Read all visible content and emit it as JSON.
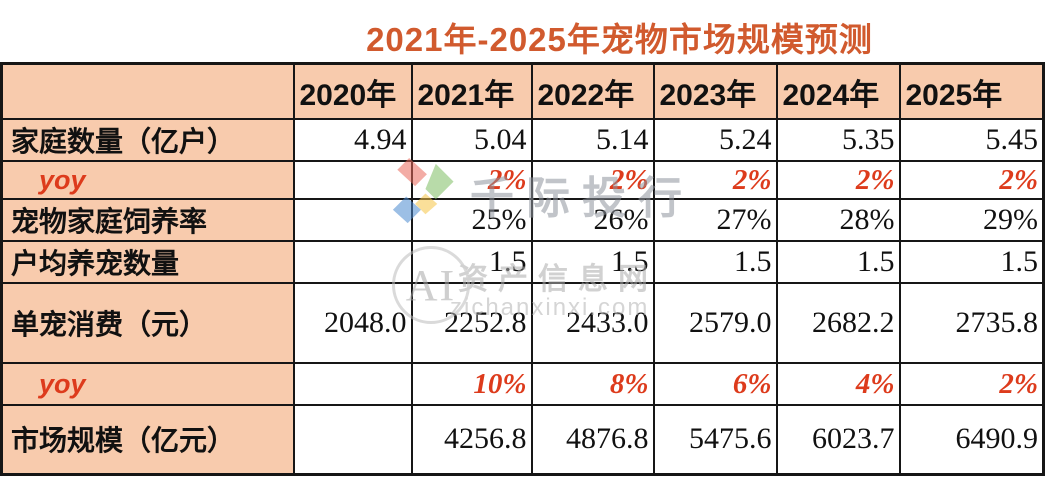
{
  "title": "2021年-2025年宠物市场规模预测",
  "colors": {
    "title_orange": "#D15A2E",
    "accent_red": "#DD3B1C",
    "header_peach": "#F8CBAD",
    "grid_border": "#161616"
  },
  "watermarks": {
    "brand1": {
      "logo": "diamond-pinwheel-logo",
      "text": "千际投行"
    },
    "brand2": {
      "logo": "ai-circle-logo",
      "text": "资产信息网",
      "url": "zichanxinxi.com"
    }
  },
  "chart_data": {
    "type": "table",
    "title": "2021年-2025年宠物市场规模预测",
    "columns": [
      "",
      "2020年",
      "2021年",
      "2022年",
      "2023年",
      "2024年",
      "2025年"
    ],
    "rows": [
      {
        "label": "家庭数量（亿户）",
        "style": "normal",
        "values": [
          "4.94",
          "5.04",
          "5.14",
          "5.24",
          "5.35",
          "5.45"
        ]
      },
      {
        "label": "yoy",
        "style": "yoy",
        "values": [
          "",
          "2%",
          "2%",
          "2%",
          "2%",
          "2%"
        ]
      },
      {
        "label": "宠物家庭饲养率",
        "style": "normal",
        "values": [
          "",
          "25%",
          "26%",
          "27%",
          "28%",
          "29%"
        ]
      },
      {
        "label": "户均养宠数量",
        "style": "normal",
        "values": [
          "",
          "1.5",
          "1.5",
          "1.5",
          "1.5",
          "1.5"
        ]
      },
      {
        "label": "单宠消费（元）",
        "style": "normal",
        "values": [
          "2048.0",
          "2252.8",
          "2433.0",
          "2579.0",
          "2682.2",
          "2735.8"
        ]
      },
      {
        "label": "yoy",
        "style": "yoy",
        "values": [
          "",
          "10%",
          "8%",
          "6%",
          "4%",
          "2%"
        ]
      },
      {
        "label": "市场规模（亿元）",
        "style": "normal",
        "values": [
          "",
          "4256.8",
          "4876.8",
          "5475.6",
          "6023.7",
          "6490.9"
        ]
      }
    ]
  }
}
